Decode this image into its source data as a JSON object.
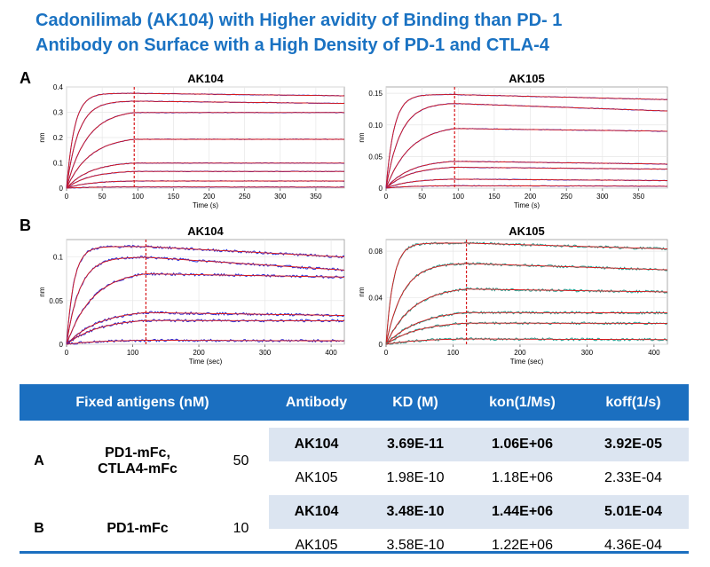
{
  "title": {
    "line1": "Cadonilimab (AK104) with Higher avidity of Binding than PD- 1",
    "line2": "Antibody on Surface with a High Density of PD-1 and CTLA-4"
  },
  "panels": {
    "a_label": "A",
    "b_label": "B"
  },
  "colors": {
    "title": "#1a72c2",
    "header": "#1b6fc0",
    "shade": "#dce5f1",
    "fit": "#d7191c",
    "trace_blue": "#2b2bd6",
    "trace_teal": "#2a9d8f"
  },
  "chart_data": [
    {
      "type": "line",
      "title": "AK104",
      "xlabel": "Time (s)",
      "ylabel": "nm",
      "xlim": [
        0,
        390
      ],
      "ylim": [
        0,
        0.4
      ],
      "dissociation_start": 95,
      "xticks": [
        "0",
        "50",
        "100",
        "150",
        "200",
        "250",
        "300",
        "350"
      ],
      "xtick_values": [
        0,
        50,
        100,
        150,
        200,
        250,
        300,
        350
      ],
      "yticks": [
        "0",
        "0.1",
        "0.2",
        "0.3",
        "0.4"
      ],
      "ytick_values": [
        0,
        0.1,
        0.2,
        0.3,
        0.4
      ],
      "trace_color": "#2b2bd6",
      "series": [
        {
          "plateau": 0.375,
          "end": 0.365,
          "k": 0.09
        },
        {
          "plateau": 0.345,
          "end": 0.335,
          "k": 0.06
        },
        {
          "plateau": 0.31,
          "end": 0.3,
          "k": 0.035
        },
        {
          "plateau": 0.205,
          "end": 0.2,
          "k": 0.03
        },
        {
          "plateau": 0.105,
          "end": 0.1,
          "k": 0.03
        },
        {
          "plateau": 0.07,
          "end": 0.067,
          "k": 0.03
        },
        {
          "plateau": 0.03,
          "end": 0.028,
          "k": 0.03
        },
        {
          "plateau": 0.005,
          "end": 0.004,
          "k": 0.03
        }
      ]
    },
    {
      "type": "line",
      "title": "AK105",
      "xlabel": "Time (s)",
      "ylabel": "nm",
      "xlim": [
        0,
        390
      ],
      "ylim": [
        0,
        0.16
      ],
      "dissociation_start": 95,
      "xticks": [
        "0",
        "50",
        "100",
        "150",
        "200",
        "250",
        "300",
        "350"
      ],
      "xtick_values": [
        0,
        50,
        100,
        150,
        200,
        250,
        300,
        350
      ],
      "yticks": [
        "0",
        "0.05",
        "0.10",
        "0.15"
      ],
      "ytick_values": [
        0,
        0.05,
        0.1,
        0.15
      ],
      "trace_color": "#2b2bd6",
      "series": [
        {
          "plateau": 0.148,
          "end": 0.14,
          "k": 0.09
        },
        {
          "plateau": 0.135,
          "end": 0.122,
          "k": 0.05
        },
        {
          "plateau": 0.1,
          "end": 0.09,
          "k": 0.03
        },
        {
          "plateau": 0.045,
          "end": 0.038,
          "k": 0.03
        },
        {
          "plateau": 0.035,
          "end": 0.03,
          "k": 0.03
        },
        {
          "plateau": 0.015,
          "end": 0.012,
          "k": 0.03
        },
        {
          "plateau": 0.004,
          "end": 0.003,
          "k": 0.03
        }
      ]
    },
    {
      "type": "line",
      "title": "AK104",
      "xlabel": "Time (sec)",
      "ylabel": "nm",
      "xlim": [
        0,
        420
      ],
      "ylim": [
        0,
        0.12
      ],
      "dissociation_start": 120,
      "xticks": [
        "0",
        "100",
        "200",
        "300",
        "400"
      ],
      "xtick_values": [
        0,
        100,
        200,
        300,
        400
      ],
      "yticks": [
        "0",
        "0.05",
        "0.1"
      ],
      "ytick_values": [
        0,
        0.05,
        0.1
      ],
      "trace_color": "#2b2bd6",
      "series": [
        {
          "plateau": 0.112,
          "end": 0.1,
          "k": 0.09
        },
        {
          "plateau": 0.1,
          "end": 0.085,
          "k": 0.05
        },
        {
          "plateau": 0.085,
          "end": 0.077,
          "k": 0.025
        },
        {
          "plateau": 0.04,
          "end": 0.033,
          "k": 0.02
        },
        {
          "plateau": 0.03,
          "end": 0.027,
          "k": 0.02
        },
        {
          "plateau": 0.005,
          "end": 0.004,
          "k": 0.02
        }
      ]
    },
    {
      "type": "line",
      "title": "AK105",
      "xlabel": "Time (sec)",
      "ylabel": "nm",
      "xlim": [
        0,
        420
      ],
      "ylim": [
        0,
        0.09
      ],
      "dissociation_start": 120,
      "xticks": [
        "0",
        "100",
        "200",
        "300",
        "400"
      ],
      "xtick_values": [
        0,
        100,
        200,
        300,
        400
      ],
      "yticks": [
        "0",
        "0.04",
        "0.08"
      ],
      "ytick_values": [
        0,
        0.04,
        0.08
      ],
      "trace_color": "#2a9d8f",
      "series": [
        {
          "plateau": 0.087,
          "end": 0.082,
          "k": 0.09
        },
        {
          "plateau": 0.07,
          "end": 0.064,
          "k": 0.04
        },
        {
          "plateau": 0.05,
          "end": 0.045,
          "k": 0.025
        },
        {
          "plateau": 0.03,
          "end": 0.027,
          "k": 0.02
        },
        {
          "plateau": 0.02,
          "end": 0.018,
          "k": 0.02
        },
        {
          "plateau": 0.005,
          "end": 0.004,
          "k": 0.02
        }
      ]
    }
  ],
  "table": {
    "headers": {
      "fixed": "Fixed antigens (nM)",
      "antibody": "Antibody",
      "kd": "KD (M)",
      "kon": "kon(1/Ms)",
      "koff": "koff(1/s)"
    },
    "groups": [
      {
        "label": "A",
        "antigen_line1": "PD1-mFc,",
        "antigen_line2": "CTLA4-mFc",
        "conc": "50",
        "rows": [
          {
            "antibody": "AK104",
            "kd": "3.69E-11",
            "kon": "1.06E+06",
            "koff": "3.92E-05"
          },
          {
            "antibody": "AK105",
            "kd": "1.98E-10",
            "kon": "1.18E+06",
            "koff": "2.33E-04"
          }
        ]
      },
      {
        "label": "B",
        "antigen": "PD1-mFc",
        "conc": "10",
        "rows": [
          {
            "antibody": "AK104",
            "kd": "3.48E-10",
            "kon": "1.44E+06",
            "koff": "5.01E-04"
          },
          {
            "antibody": "AK105",
            "kd": "3.58E-10",
            "kon": "1.22E+06",
            "koff": "4.36E-04"
          }
        ]
      }
    ]
  }
}
